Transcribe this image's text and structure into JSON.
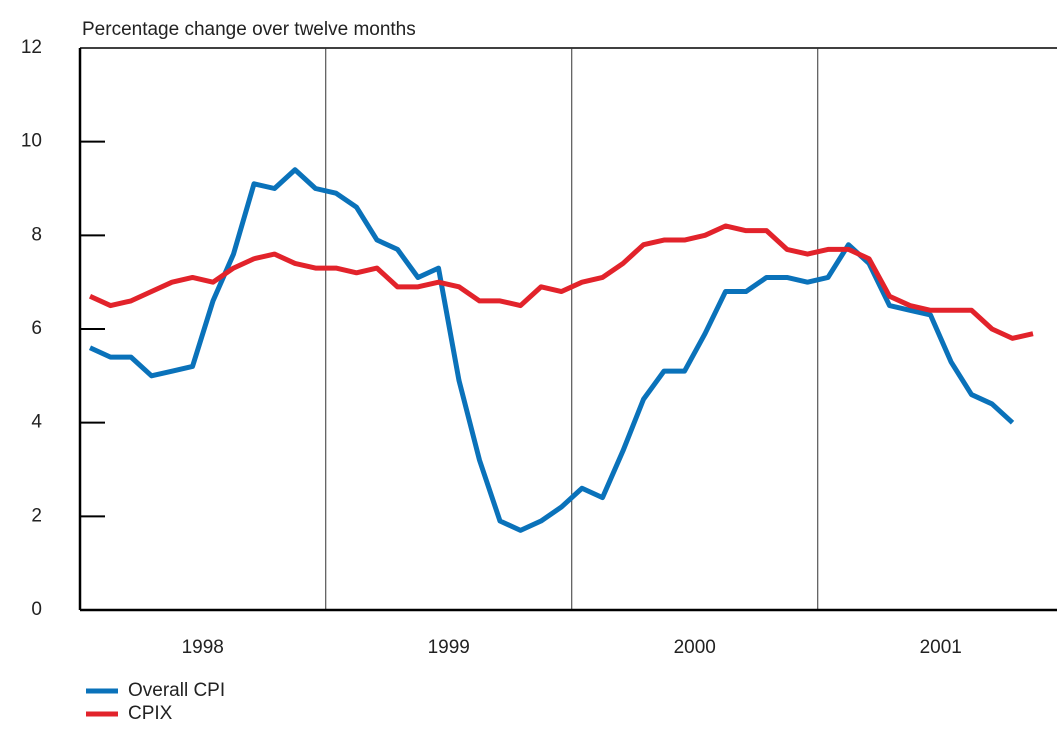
{
  "chart_data": {
    "type": "line",
    "y_axis_label": "Percentage change over twelve months",
    "year_labels": [
      "1998",
      "1999",
      "2000",
      "2001"
    ],
    "months_per_year": 12,
    "ylim": [
      0,
      12
    ],
    "yticks": [
      0,
      2,
      4,
      6,
      8,
      10,
      12
    ],
    "series": [
      {
        "name": "Overall CPI",
        "color": "#0a72ba",
        "values": [
          5.6,
          5.4,
          5.4,
          5.0,
          5.1,
          5.2,
          6.6,
          7.6,
          9.1,
          9.0,
          9.4,
          9.0,
          8.9,
          8.6,
          7.9,
          7.7,
          7.1,
          7.3,
          4.9,
          3.2,
          1.9,
          1.7,
          1.9,
          2.2,
          2.6,
          2.4,
          3.4,
          4.5,
          5.1,
          5.1,
          5.9,
          6.8,
          6.8,
          7.1,
          7.1,
          7.0,
          7.1,
          7.8,
          7.4,
          6.5,
          6.4,
          6.3,
          5.3,
          4.6,
          4.4,
          4.0,
          null
        ]
      },
      {
        "name": "CPIX",
        "color": "#e2232b",
        "values": [
          6.7,
          6.5,
          6.6,
          6.8,
          7.0,
          7.1,
          7.0,
          7.3,
          7.5,
          7.6,
          7.4,
          7.3,
          7.3,
          7.2,
          7.3,
          6.9,
          6.9,
          7.0,
          6.9,
          6.6,
          6.6,
          6.5,
          6.9,
          6.8,
          7.0,
          7.1,
          7.4,
          7.8,
          7.9,
          7.9,
          8.0,
          8.2,
          8.1,
          8.1,
          7.7,
          7.6,
          7.7,
          7.7,
          7.5,
          6.7,
          6.5,
          6.4,
          6.4,
          6.4,
          6.0,
          5.8,
          5.9
        ]
      }
    ]
  }
}
